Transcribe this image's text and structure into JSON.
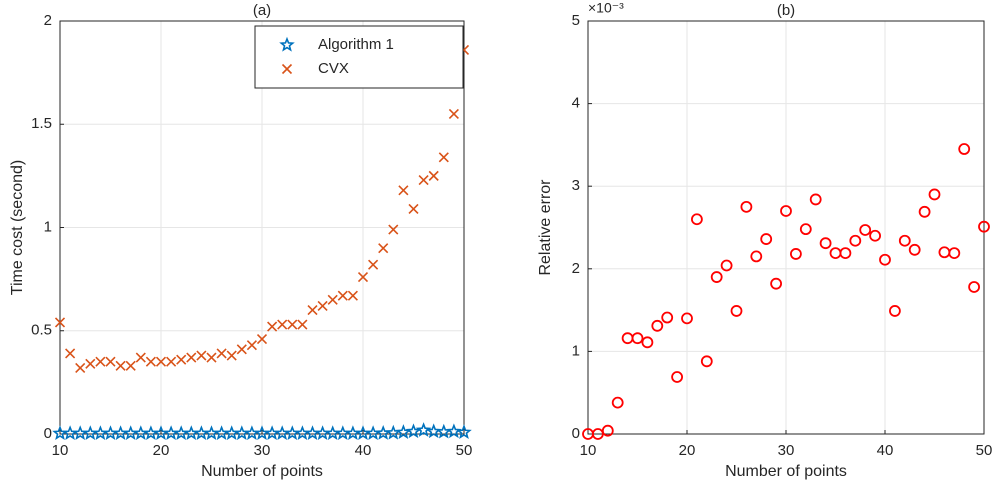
{
  "chart_data": [
    {
      "type": "scatter",
      "title": "(a)",
      "xlabel": "Number of points",
      "ylabel": "Time cost (second)",
      "x": [
        10,
        11,
        12,
        13,
        14,
        15,
        16,
        17,
        18,
        19,
        20,
        21,
        22,
        23,
        24,
        25,
        26,
        27,
        28,
        29,
        30,
        31,
        32,
        33,
        34,
        35,
        36,
        37,
        38,
        39,
        40,
        41,
        42,
        43,
        44,
        45,
        46,
        47,
        48,
        49,
        50
      ],
      "series": [
        {
          "name": "Algorithm 1",
          "color": "#0072bd",
          "marker": "star",
          "values": [
            0.003,
            0.003,
            0.003,
            0.003,
            0.003,
            0.003,
            0.003,
            0.003,
            0.003,
            0.003,
            0.003,
            0.003,
            0.003,
            0.003,
            0.003,
            0.003,
            0.003,
            0.003,
            0.003,
            0.003,
            0.003,
            0.003,
            0.003,
            0.003,
            0.003,
            0.003,
            0.003,
            0.003,
            0.003,
            0.003,
            0.003,
            0.003,
            0.004,
            0.005,
            0.008,
            0.012,
            0.018,
            0.012,
            0.01,
            0.012,
            0.008
          ]
        },
        {
          "name": "CVX",
          "color": "#d95319",
          "marker": "x",
          "values": [
            0.54,
            0.39,
            0.32,
            0.34,
            0.35,
            0.35,
            0.33,
            0.33,
            0.37,
            0.35,
            0.35,
            0.35,
            0.36,
            0.37,
            0.38,
            0.37,
            0.39,
            0.38,
            0.41,
            0.43,
            0.46,
            0.52,
            0.53,
            0.53,
            0.53,
            0.6,
            0.62,
            0.65,
            0.67,
            0.67,
            0.76,
            0.82,
            0.9,
            0.99,
            1.18,
            1.09,
            1.23,
            1.25,
            1.34,
            1.55,
            1.86
          ]
        }
      ],
      "xlim": [
        10,
        50
      ],
      "xticks": [
        10,
        20,
        30,
        40,
        50
      ],
      "ylim": [
        0,
        2
      ],
      "yticks": [
        0,
        0.5,
        1,
        1.5,
        2
      ],
      "grid": true,
      "legend": "northeast"
    },
    {
      "type": "scatter",
      "title": "(b)",
      "xlabel": "Number of points",
      "ylabel": "Relative error",
      "y_exponent": "×10⁻³",
      "x": [
        10,
        11,
        12,
        13,
        14,
        15,
        16,
        17,
        18,
        19,
        20,
        21,
        22,
        23,
        24,
        25,
        26,
        27,
        28,
        29,
        30,
        31,
        32,
        33,
        34,
        35,
        36,
        37,
        38,
        39,
        40,
        41,
        42,
        43,
        44,
        45,
        46,
        47,
        48,
        49,
        50
      ],
      "series": [
        {
          "color": "#ff0000",
          "marker": "o",
          "values": [
            0,
            0,
            4e-05,
            0.00038,
            0.00116,
            0.00116,
            0.00111,
            0.00131,
            0.00141,
            0.00069,
            0.0014,
            0.0026,
            0.00088,
            0.0019,
            0.00204,
            0.00149,
            0.00275,
            0.00215,
            0.00236,
            0.00182,
            0.0027,
            0.00218,
            0.00248,
            0.00284,
            0.00231,
            0.00219,
            0.00219,
            0.00234,
            0.00247,
            0.0024,
            0.00211,
            0.00149,
            0.00234,
            0.00223,
            0.00269,
            0.0029,
            0.0022,
            0.00219,
            0.00345,
            0.00178,
            0.00251
          ]
        }
      ],
      "xlim": [
        10,
        50
      ],
      "xticks": [
        10,
        20,
        30,
        40,
        50
      ],
      "ylim": [
        0,
        0.005
      ],
      "yticks": [
        {
          "value": 0,
          "label": "0"
        },
        {
          "value": 0.001,
          "label": "1"
        },
        {
          "value": 0.002,
          "label": "2"
        },
        {
          "value": 0.003,
          "label": "3"
        },
        {
          "value": 0.004,
          "label": "4"
        },
        {
          "value": 0.005,
          "label": "5"
        }
      ],
      "grid": true
    }
  ]
}
